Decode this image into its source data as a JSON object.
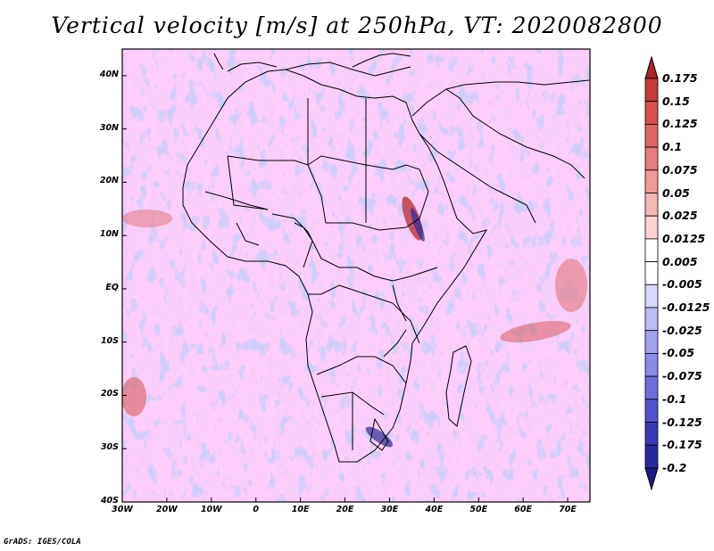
{
  "title": "Vertical velocity [m/s] at 250hPa, VT: 2020082800",
  "credit": "GrADS: IGES/COLA",
  "map": {
    "lon_range": [
      -30,
      75
    ],
    "lat_range": [
      -40,
      45
    ],
    "lat_ticks": [
      {
        "value": 40,
        "label": "40N"
      },
      {
        "value": 30,
        "label": "30N"
      },
      {
        "value": 20,
        "label": "20N"
      },
      {
        "value": 10,
        "label": "10N"
      },
      {
        "value": 0,
        "label": "EQ"
      },
      {
        "value": -10,
        "label": "10S"
      },
      {
        "value": -20,
        "label": "20S"
      },
      {
        "value": -30,
        "label": "30S"
      },
      {
        "value": -40,
        "label": "40S"
      }
    ],
    "lon_ticks": [
      {
        "value": -30,
        "label": "30W"
      },
      {
        "value": -20,
        "label": "20W"
      },
      {
        "value": -10,
        "label": "10W"
      },
      {
        "value": 0,
        "label": "0"
      },
      {
        "value": 10,
        "label": "10E"
      },
      {
        "value": 20,
        "label": "20E"
      },
      {
        "value": 30,
        "label": "30E"
      },
      {
        "value": 40,
        "label": "40E"
      },
      {
        "value": 50,
        "label": "50E"
      },
      {
        "value": 60,
        "label": "60E"
      },
      {
        "value": 70,
        "label": "70E"
      }
    ]
  },
  "colorbar": {
    "labels": [
      "0.175",
      "0.15",
      "0.125",
      "0.1",
      "0.075",
      "0.05",
      "0.025",
      "0.0125",
      "0.005",
      "-0.005",
      "-0.0125",
      "-0.025",
      "-0.05",
      "-0.075",
      "-0.1",
      "-0.125",
      "-0.175",
      "-0.2"
    ],
    "colors": [
      "#a8262b",
      "#c43a3a",
      "#d65050",
      "#e06464",
      "#e87c7c",
      "#f09a9a",
      "#f6b6b6",
      "#fbd3d3",
      "#ffffff",
      "#ffffff",
      "#d8d8fb",
      "#bcbcf6",
      "#a2a2f0",
      "#8a8ae8",
      "#6e6ee0",
      "#5252d0",
      "#3a3ab8",
      "#2a2aa0",
      "#1a1a88"
    ]
  }
}
